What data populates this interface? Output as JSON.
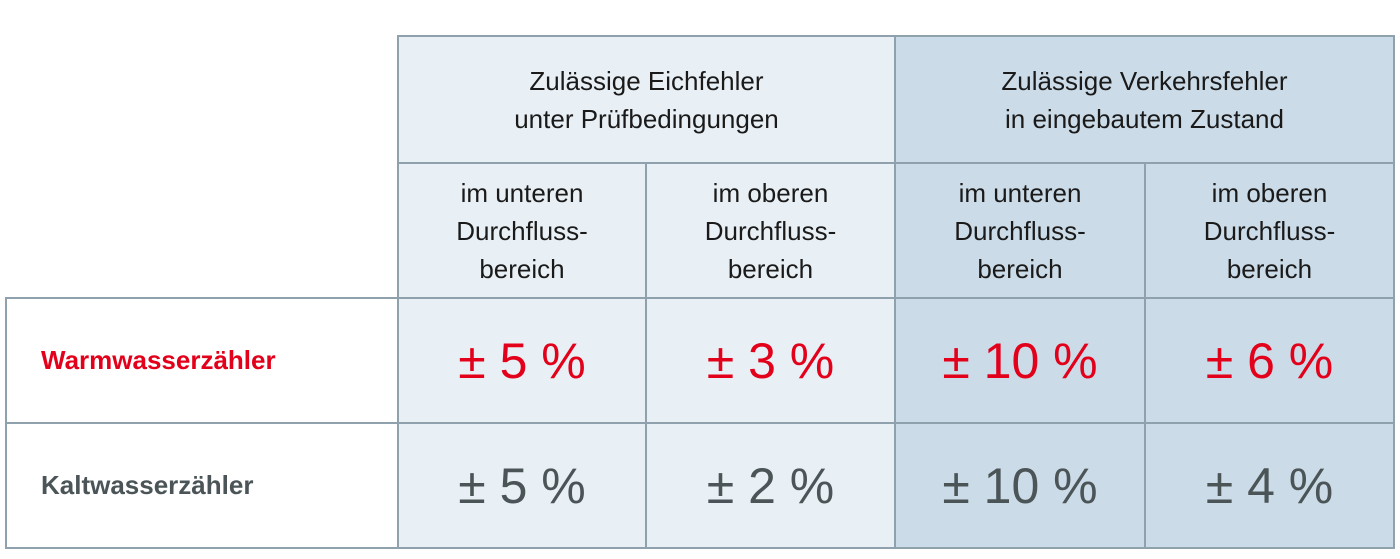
{
  "table": {
    "groups": [
      "Zulässige Eichfehler\nunter Prüfbedingungen",
      "Zulässige Verkehrsfehler\nin eingebautem Zustand"
    ],
    "subheaders": [
      "im unteren\nDurchfluss-\nbereich",
      "im oberen\nDurchfluss-\nbereich",
      "im unteren\nDurchfluss-\nbereich",
      "im oberen\nDurchfluss-\nbereich"
    ],
    "rows": [
      {
        "label": "Warmwasserzähler",
        "values": [
          "± 5 %",
          "± 3 %",
          "± 10 %",
          "± 6 %"
        ]
      },
      {
        "label": "Kaltwasserzähler",
        "values": [
          "± 5 %",
          "± 2 %",
          "± 10 %",
          "± 4 %"
        ]
      }
    ]
  }
}
